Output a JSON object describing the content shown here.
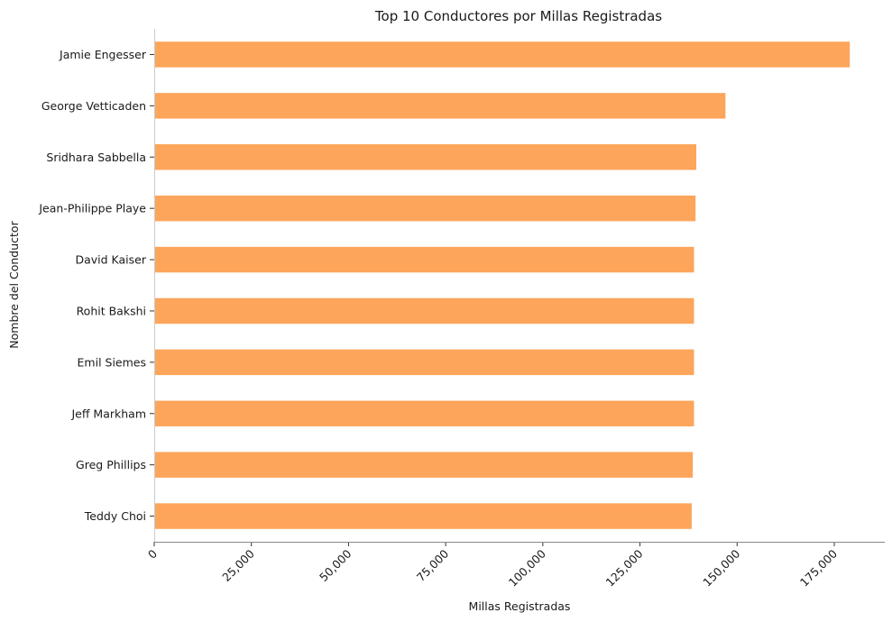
{
  "chart_data": {
    "type": "bar",
    "orientation": "horizontal",
    "title": "Top 10 Conductores por Millas Registradas",
    "xlabel": "Millas Registradas",
    "ylabel": "Nombre del Conductor",
    "categories": [
      "Jamie Engesser",
      "George Vetticaden",
      "Sridhara Sabbella",
      "Jean-Philippe Playe",
      "David Kaiser",
      "Rohit Bakshi",
      "Emil Siemes",
      "Jeff Markham",
      "Greg Phillips",
      "Teddy Choi"
    ],
    "values": [
      179000,
      147000,
      139500,
      139300,
      138900,
      138900,
      138900,
      138900,
      138600,
      138300
    ],
    "xlim": [
      0,
      188000
    ],
    "xticks": [
      0,
      25000,
      50000,
      75000,
      100000,
      125000,
      150000,
      175000
    ],
    "xtick_labels": [
      "0",
      "25,000",
      "50,000",
      "75,000",
      "100,000",
      "125,000",
      "150,000",
      "175,000"
    ],
    "bar_color": "#fda55a",
    "grid": false,
    "legend": "none"
  }
}
